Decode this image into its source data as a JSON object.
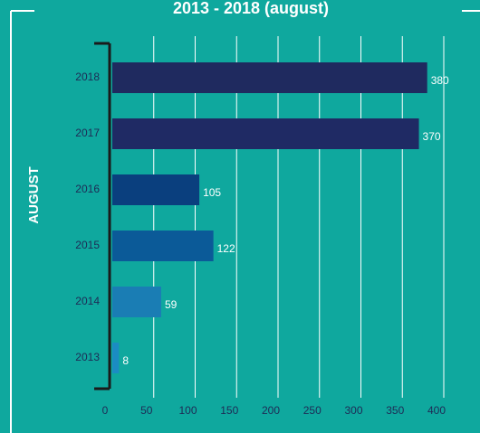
{
  "chart_data": {
    "type": "hbar",
    "title": "2013 - 2018 (august)",
    "y_label": "AUGUST",
    "categories": [
      "2018",
      "2017",
      "2016",
      "2015",
      "2014",
      "2013"
    ],
    "values": [
      380,
      370,
      105,
      122,
      59,
      8
    ],
    "colors": [
      "#1f2a5f",
      "#1f2a64",
      "#0a3f7e",
      "#0b5a98",
      "#1a7db4",
      "#1b8cc3"
    ],
    "xlim": [
      0,
      400
    ],
    "xticks": [
      0,
      50,
      100,
      150,
      200,
      250,
      300,
      350,
      400
    ],
    "grid": true
  }
}
